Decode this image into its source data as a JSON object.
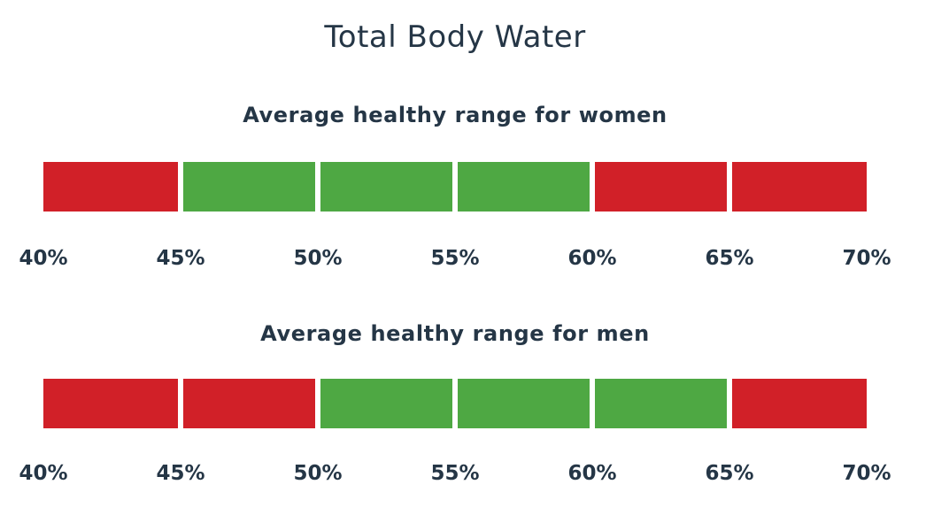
{
  "chart_data": {
    "type": "bar",
    "title": "Total Body Water",
    "x_range": [
      40,
      70
    ],
    "tick_labels": [
      "40%",
      "45%",
      "50%",
      "55%",
      "60%",
      "65%",
      "70%"
    ],
    "colors": {
      "healthy": "#4ea843",
      "unhealthy": "#d12028",
      "text": "#253646"
    },
    "panels": [
      {
        "subtitle": "Average healthy range for women",
        "segments": [
          {
            "from": 40,
            "to": 45,
            "status": "unhealthy"
          },
          {
            "from": 45,
            "to": 50,
            "status": "healthy"
          },
          {
            "from": 50,
            "to": 55,
            "status": "healthy"
          },
          {
            "from": 55,
            "to": 60,
            "status": "healthy"
          },
          {
            "from": 60,
            "to": 65,
            "status": "unhealthy"
          },
          {
            "from": 65,
            "to": 70,
            "status": "unhealthy"
          }
        ]
      },
      {
        "subtitle": "Average healthy range for men",
        "segments": [
          {
            "from": 40,
            "to": 45,
            "status": "unhealthy"
          },
          {
            "from": 45,
            "to": 50,
            "status": "unhealthy"
          },
          {
            "from": 50,
            "to": 55,
            "status": "healthy"
          },
          {
            "from": 55,
            "to": 60,
            "status": "healthy"
          },
          {
            "from": 60,
            "to": 65,
            "status": "healthy"
          },
          {
            "from": 65,
            "to": 70,
            "status": "unhealthy"
          }
        ]
      }
    ]
  }
}
